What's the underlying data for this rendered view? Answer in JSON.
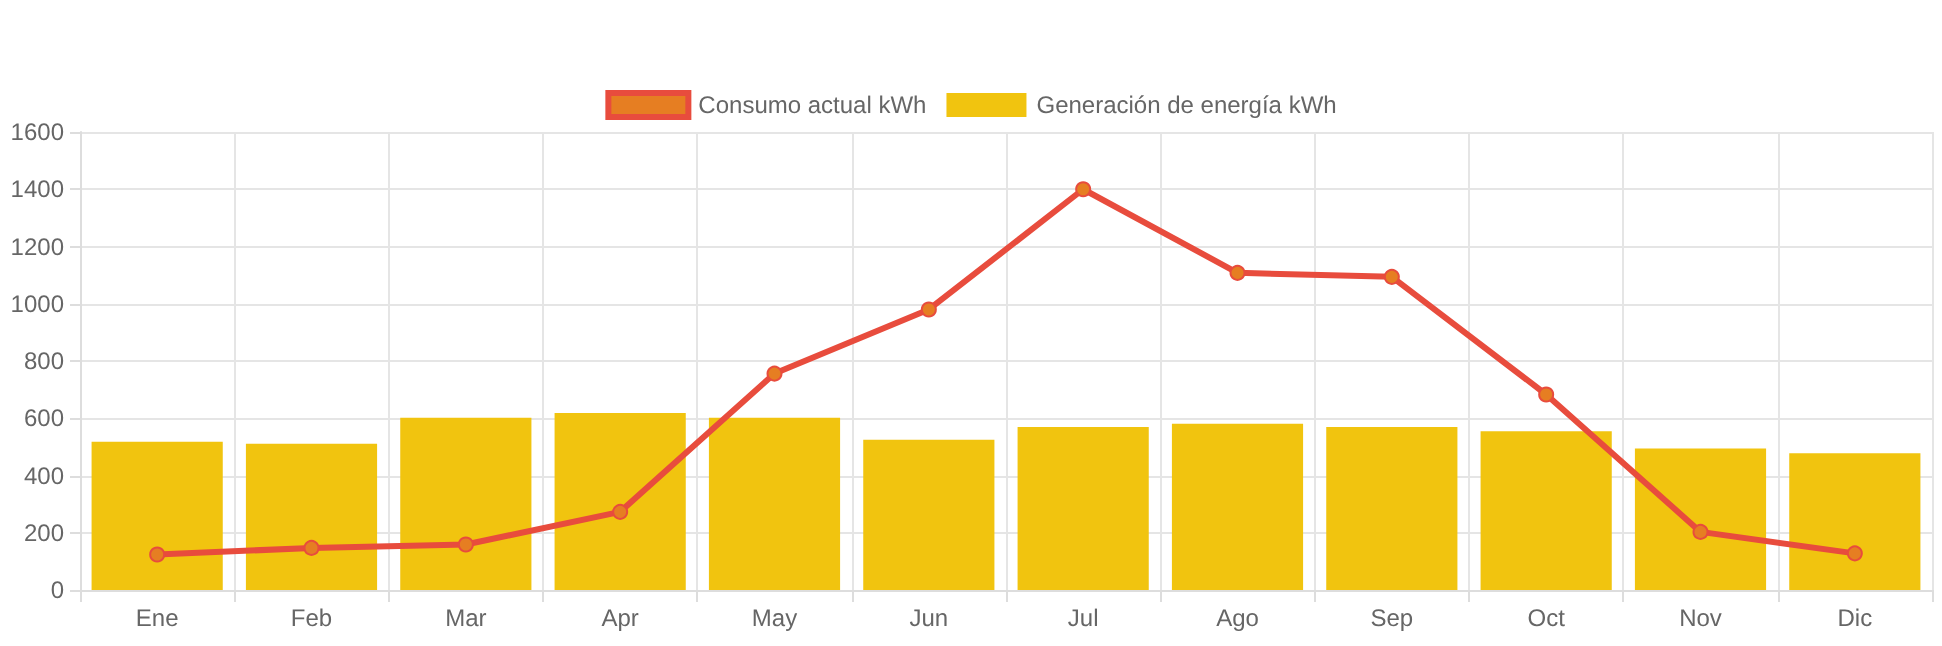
{
  "chart_data": {
    "type": "bar",
    "categories": [
      "Ene",
      "Feb",
      "Mar",
      "Apr",
      "May",
      "Jun",
      "Jul",
      "Ago",
      "Sep",
      "Oct",
      "Nov",
      "Dic"
    ],
    "series": [
      {
        "name": "Consumo actual kWh",
        "type": "line",
        "color": "#e84c3d",
        "values": [
          124,
          147,
          159,
          273,
          756,
          980,
          1400,
          1108,
          1094,
          683,
          203,
          128
        ]
      },
      {
        "name": "Generación de energía kWh",
        "color": "#f1c40f",
        "values": [
          518,
          511,
          602,
          618,
          602,
          525,
          569,
          581,
          569,
          555,
          494,
          478
        ]
      }
    ],
    "ylim": [
      0,
      1600
    ],
    "yticks": [
      0,
      200,
      400,
      600,
      800,
      1000,
      1200,
      1400,
      1600
    ],
    "grid": true,
    "legend": "top",
    "marker": "circle",
    "line_style": "solid"
  }
}
